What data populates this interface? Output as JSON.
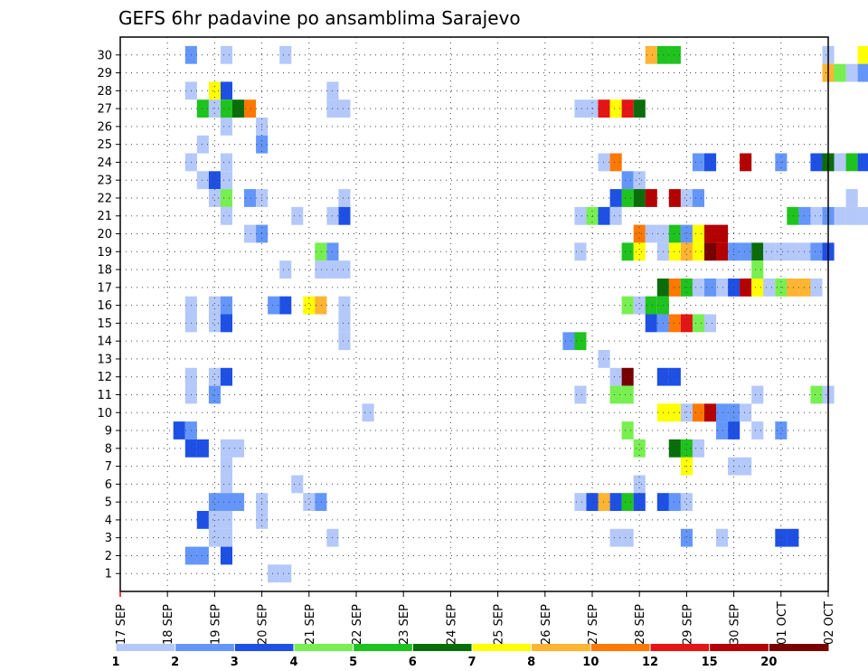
{
  "chart_data": {
    "type": "heatmap",
    "title": "GEFS 6hr padavine po ansamblima Sarajevo",
    "x_labels": [
      "17 SEP",
      "18 SEP",
      "19 SEP",
      "20 SEP",
      "21 SEP",
      "22 SEP",
      "23 SEP",
      "24 SEP",
      "25 SEP",
      "26 SEP",
      "27 SEP",
      "28 SEP",
      "29 SEP",
      "30 SEP",
      "01 OCT",
      "02 OCT"
    ],
    "x_start": "2023-09-17 00Z",
    "time_step_hours": 6,
    "y_labels": [
      "1",
      "2",
      "3",
      "4",
      "5",
      "6",
      "7",
      "8",
      "9",
      "10",
      "11",
      "12",
      "13",
      "14",
      "15",
      "16",
      "17",
      "18",
      "19",
      "20",
      "21",
      "22",
      "23",
      "24",
      "25",
      "26",
      "27",
      "28",
      "29",
      "30"
    ],
    "grid": true,
    "legend": {
      "placement": "bottom",
      "labels": [
        "1",
        "2",
        "3",
        "4",
        "5",
        "6",
        "7",
        "8",
        "10",
        "12",
        "15",
        "20"
      ],
      "colors": [
        "#b4c8fa",
        "#6496fa",
        "#1e50e6",
        "#78ef50",
        "#1ec31e",
        "#096e09",
        "#ffff00",
        "#ffb432",
        "#ff7800",
        "#e61414",
        "#b40000",
        "#780000"
      ]
    },
    "cells": [
      [
        30,
        9,
        1
      ],
      [
        30,
        6,
        2
      ],
      [
        30,
        14,
        1
      ],
      [
        30,
        45,
        8
      ],
      [
        30,
        46,
        5
      ],
      [
        30,
        47,
        5
      ],
      [
        30,
        60,
        1
      ],
      [
        30,
        63,
        7
      ],
      [
        30,
        64,
        5
      ],
      [
        29,
        60,
        8
      ],
      [
        29,
        61,
        4
      ],
      [
        29,
        62,
        1
      ],
      [
        29,
        63,
        2
      ],
      [
        29,
        72,
        6
      ],
      [
        29,
        73,
        1
      ],
      [
        29,
        74,
        8
      ],
      [
        29,
        75,
        6
      ],
      [
        28,
        9,
        3
      ],
      [
        28,
        8,
        7
      ],
      [
        28,
        6,
        1
      ],
      [
        28,
        18,
        1
      ],
      [
        27,
        9,
        5
      ],
      [
        27,
        7,
        5
      ],
      [
        27,
        8,
        1
      ],
      [
        27,
        10,
        6
      ],
      [
        27,
        11,
        9
      ],
      [
        27,
        19,
        1
      ],
      [
        27,
        18,
        1
      ],
      [
        27,
        39,
        1
      ],
      [
        27,
        40,
        1
      ],
      [
        27,
        41,
        10
      ],
      [
        27,
        42,
        7
      ],
      [
        27,
        43,
        10
      ],
      [
        27,
        44,
        6
      ],
      [
        27,
        66,
        8
      ],
      [
        26,
        9,
        1
      ],
      [
        26,
        12,
        1
      ],
      [
        25,
        7,
        1
      ],
      [
        25,
        12,
        2
      ],
      [
        24,
        9,
        1
      ],
      [
        24,
        6,
        1
      ],
      [
        24,
        41,
        1
      ],
      [
        24,
        42,
        9
      ],
      [
        24,
        49,
        2
      ],
      [
        24,
        50,
        3
      ],
      [
        24,
        53,
        11
      ],
      [
        24,
        56,
        2
      ],
      [
        24,
        59,
        3
      ],
      [
        24,
        60,
        6
      ],
      [
        24,
        61,
        1
      ],
      [
        24,
        62,
        5
      ],
      [
        24,
        63,
        3
      ],
      [
        23,
        7,
        1
      ],
      [
        23,
        8,
        3
      ],
      [
        23,
        9,
        1
      ],
      [
        23,
        43,
        2
      ],
      [
        23,
        44,
        1
      ],
      [
        23,
        66,
        2
      ],
      [
        23,
        67,
        1
      ],
      [
        22,
        8,
        1
      ],
      [
        22,
        9,
        4
      ],
      [
        22,
        11,
        2
      ],
      [
        22,
        12,
        1
      ],
      [
        22,
        19,
        1
      ],
      [
        22,
        42,
        3
      ],
      [
        22,
        43,
        5
      ],
      [
        22,
        44,
        6
      ],
      [
        22,
        45,
        11
      ],
      [
        22,
        47,
        11
      ],
      [
        22,
        48,
        1
      ],
      [
        22,
        49,
        2
      ],
      [
        22,
        62,
        1
      ],
      [
        21,
        9,
        1
      ],
      [
        21,
        15,
        1
      ],
      [
        21,
        19,
        3
      ],
      [
        21,
        18,
        1
      ],
      [
        21,
        39,
        1
      ],
      [
        21,
        40,
        4
      ],
      [
        21,
        41,
        3
      ],
      [
        21,
        42,
        1
      ],
      [
        21,
        57,
        5
      ],
      [
        21,
        58,
        2
      ],
      [
        21,
        59,
        1
      ],
      [
        21,
        60,
        2
      ],
      [
        21,
        61,
        1
      ],
      [
        21,
        62,
        1
      ],
      [
        21,
        63,
        1
      ],
      [
        21,
        74,
        9
      ],
      [
        21,
        75,
        5
      ],
      [
        20,
        11,
        1
      ],
      [
        20,
        12,
        2
      ],
      [
        20,
        44,
        9
      ],
      [
        20,
        45,
        1
      ],
      [
        20,
        46,
        1
      ],
      [
        20,
        47,
        5
      ],
      [
        20,
        48,
        2
      ],
      [
        20,
        49,
        7
      ],
      [
        20,
        50,
        11
      ],
      [
        20,
        51,
        11
      ],
      [
        20,
        64,
        1
      ],
      [
        19,
        17,
        4
      ],
      [
        19,
        18,
        2
      ],
      [
        19,
        39,
        1
      ],
      [
        19,
        43,
        5
      ],
      [
        19,
        44,
        7
      ],
      [
        19,
        46,
        1
      ],
      [
        19,
        47,
        7
      ],
      [
        19,
        48,
        8
      ],
      [
        19,
        49,
        7
      ],
      [
        19,
        50,
        12
      ],
      [
        19,
        51,
        11
      ],
      [
        19,
        52,
        2
      ],
      [
        19,
        53,
        2
      ],
      [
        19,
        54,
        6
      ],
      [
        19,
        55,
        1
      ],
      [
        19,
        56,
        1
      ],
      [
        19,
        57,
        1
      ],
      [
        19,
        58,
        1
      ],
      [
        19,
        59,
        2
      ],
      [
        19,
        60,
        3
      ],
      [
        18,
        14,
        1
      ],
      [
        18,
        19,
        1
      ],
      [
        18,
        17,
        1
      ],
      [
        18,
        18,
        1
      ],
      [
        18,
        54,
        4
      ],
      [
        18,
        67,
        1
      ],
      [
        17,
        46,
        6
      ],
      [
        17,
        47,
        9
      ],
      [
        17,
        48,
        5
      ],
      [
        17,
        49,
        1
      ],
      [
        17,
        50,
        2
      ],
      [
        17,
        51,
        1
      ],
      [
        17,
        52,
        3
      ],
      [
        17,
        53,
        11
      ],
      [
        17,
        54,
        7
      ],
      [
        17,
        55,
        1
      ],
      [
        17,
        56,
        4
      ],
      [
        17,
        57,
        8
      ],
      [
        17,
        58,
        8
      ],
      [
        17,
        59,
        1
      ],
      [
        16,
        6,
        1
      ],
      [
        16,
        8,
        1
      ],
      [
        16,
        9,
        2
      ],
      [
        16,
        16,
        7
      ],
      [
        16,
        17,
        8
      ],
      [
        16,
        13,
        2
      ],
      [
        16,
        14,
        3
      ],
      [
        16,
        19,
        1
      ],
      [
        16,
        43,
        4
      ],
      [
        16,
        44,
        1
      ],
      [
        16,
        45,
        5
      ],
      [
        16,
        46,
        5
      ],
      [
        15,
        6,
        1
      ],
      [
        15,
        8,
        1
      ],
      [
        15,
        9,
        3
      ],
      [
        15,
        19,
        1
      ],
      [
        15,
        45,
        3
      ],
      [
        15,
        46,
        2
      ],
      [
        15,
        47,
        9
      ],
      [
        15,
        48,
        10
      ],
      [
        15,
        49,
        4
      ],
      [
        15,
        50,
        1
      ],
      [
        14,
        19,
        1
      ],
      [
        14,
        38,
        2
      ],
      [
        14,
        39,
        5
      ],
      [
        14,
        64,
        1
      ],
      [
        14,
        65,
        3
      ],
      [
        13,
        41,
        1
      ],
      [
        12,
        6,
        1
      ],
      [
        12,
        8,
        1
      ],
      [
        12,
        9,
        3
      ],
      [
        12,
        42,
        1
      ],
      [
        12,
        43,
        12
      ],
      [
        12,
        46,
        3
      ],
      [
        12,
        47,
        3
      ],
      [
        11,
        6,
        1
      ],
      [
        11,
        8,
        2
      ],
      [
        11,
        39,
        1
      ],
      [
        11,
        42,
        4
      ],
      [
        11,
        43,
        4
      ],
      [
        11,
        54,
        1
      ],
      [
        11,
        59,
        4
      ],
      [
        11,
        60,
        1
      ],
      [
        10,
        21,
        1
      ],
      [
        10,
        46,
        7
      ],
      [
        10,
        47,
        7
      ],
      [
        10,
        48,
        1
      ],
      [
        10,
        49,
        9
      ],
      [
        10,
        50,
        11
      ],
      [
        10,
        51,
        2
      ],
      [
        10,
        52,
        2
      ],
      [
        10,
        53,
        1
      ],
      [
        9,
        5,
        3
      ],
      [
        9,
        6,
        2
      ],
      [
        9,
        43,
        4
      ],
      [
        9,
        51,
        2
      ],
      [
        9,
        52,
        3
      ],
      [
        9,
        54,
        1
      ],
      [
        9,
        56,
        2
      ],
      [
        9,
        73,
        4
      ],
      [
        9,
        74,
        1
      ],
      [
        8,
        6,
        3
      ],
      [
        8,
        7,
        3
      ],
      [
        8,
        9,
        1
      ],
      [
        8,
        10,
        1
      ],
      [
        8,
        44,
        4
      ],
      [
        8,
        47,
        6
      ],
      [
        8,
        48,
        5
      ],
      [
        8,
        49,
        1
      ],
      [
        7,
        9,
        1
      ],
      [
        7,
        48,
        7
      ],
      [
        7,
        52,
        1
      ],
      [
        7,
        53,
        1
      ],
      [
        7,
        66,
        1
      ],
      [
        7,
        67,
        1
      ],
      [
        7,
        68,
        8
      ],
      [
        7,
        69,
        2
      ],
      [
        6,
        9,
        1
      ],
      [
        6,
        15,
        1
      ],
      [
        6,
        44,
        1
      ],
      [
        5,
        8,
        2
      ],
      [
        5,
        9,
        2
      ],
      [
        5,
        10,
        2
      ],
      [
        5,
        12,
        1
      ],
      [
        5,
        16,
        1
      ],
      [
        5,
        17,
        2
      ],
      [
        5,
        39,
        1
      ],
      [
        5,
        40,
        3
      ],
      [
        5,
        41,
        8
      ],
      [
        5,
        42,
        3
      ],
      [
        5,
        43,
        5
      ],
      [
        5,
        44,
        3
      ],
      [
        5,
        46,
        3
      ],
      [
        5,
        47,
        2
      ],
      [
        5,
        48,
        1
      ],
      [
        4,
        7,
        3
      ],
      [
        4,
        8,
        1
      ],
      [
        4,
        9,
        1
      ],
      [
        4,
        12,
        1
      ],
      [
        3,
        8,
        1
      ],
      [
        3,
        9,
        1
      ],
      [
        3,
        18,
        1
      ],
      [
        3,
        42,
        1
      ],
      [
        3,
        43,
        1
      ],
      [
        3,
        48,
        2
      ],
      [
        3,
        51,
        1
      ],
      [
        3,
        56,
        3
      ],
      [
        3,
        57,
        3
      ],
      [
        2,
        6,
        2
      ],
      [
        2,
        7,
        2
      ],
      [
        2,
        9,
        3
      ],
      [
        1,
        13,
        1
      ],
      [
        1,
        14,
        1
      ],
      [
        1,
        73,
        2
      ],
      [
        1,
        74,
        2
      ],
      [
        1,
        75,
        1
      ]
    ]
  }
}
